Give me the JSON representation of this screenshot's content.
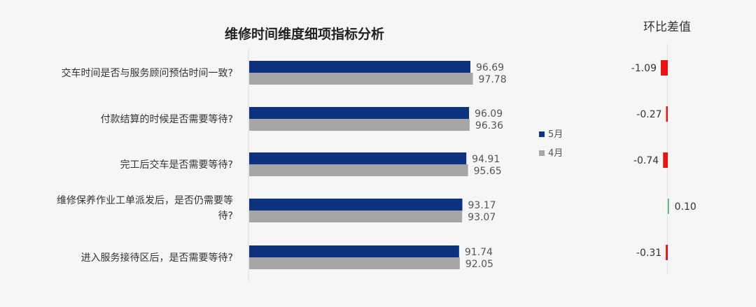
{
  "chart_data": [
    {
      "type": "bar",
      "orientation": "horizontal",
      "title": "维修时间维度细项指标分析",
      "categories": [
        [
          "交车时间是否与服务顾问预估时间一致?"
        ],
        [
          "付款结算的时候是否需要等待?"
        ],
        [
          "完工后交车是否需要等待?"
        ],
        [
          "维修保养作业工单派发后，是否仍需要等",
          "待?"
        ],
        [
          "进入服务接待区后，是否需要等待?"
        ]
      ],
      "series": [
        {
          "name": "5月",
          "color": "#0d3380",
          "values": [
            96.69,
            96.09,
            94.91,
            93.17,
            91.74
          ]
        },
        {
          "name": "4月",
          "color": "#a6a6a6",
          "values": [
            97.78,
            96.36,
            95.65,
            93.07,
            92.05
          ]
        }
      ],
      "xlim": [
        60,
        100
      ],
      "grid": false,
      "legend": "right"
    },
    {
      "type": "bar",
      "orientation": "horizontal",
      "title": "环比差值",
      "values": [
        -1.09,
        -0.27,
        -0.74,
        0.1,
        -0.31
      ],
      "labels": [
        "-1.09",
        "-0.27",
        "-0.74",
        "0.10",
        "-0.31"
      ],
      "negative_color": "#ee1111",
      "positive_color": "#3cb371"
    }
  ]
}
